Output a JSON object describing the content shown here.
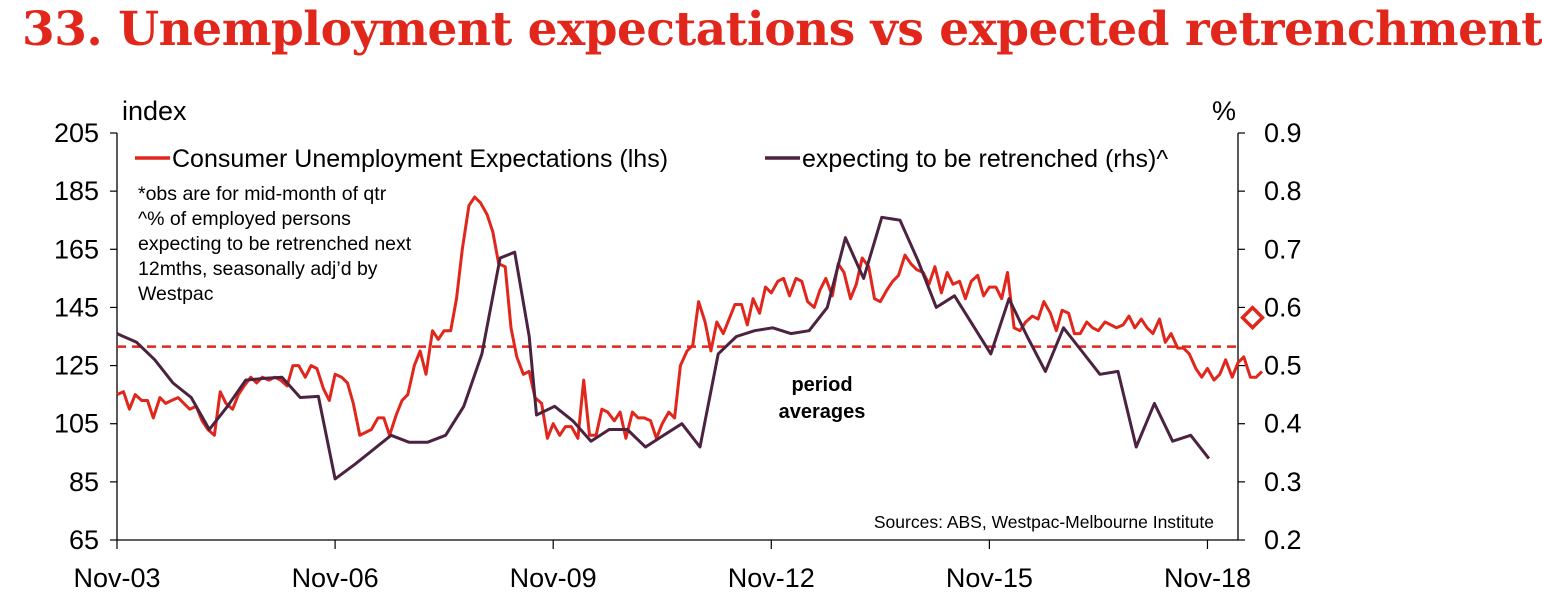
{
  "title": "33. Unemployment expectations vs expected retrenchment",
  "chart_data": {
    "type": "line",
    "title": "33. Unemployment expectations vs expected retrenchment",
    "lhs_unit": "index",
    "rhs_unit": "%",
    "lhs_range": [
      65,
      205
    ],
    "rhs_range": [
      0.2,
      0.9
    ],
    "lhs_ticks": [
      "205",
      "185",
      "165",
      "145",
      "125",
      "105",
      "85",
      "65"
    ],
    "rhs_ticks": [
      "0.9",
      "0.8",
      "0.7",
      "0.6",
      "0.5",
      "0.4",
      "0.3",
      "0.2"
    ],
    "x_range_years": [
      2003.83,
      2019.25
    ],
    "x_ticks": [
      {
        "label": "Nov-03",
        "t": 2003.83
      },
      {
        "label": "Nov-06",
        "t": 2006.83
      },
      {
        "label": "Nov-09",
        "t": 2009.83
      },
      {
        "label": "Nov-12",
        "t": 2012.83
      },
      {
        "label": "Nov-15",
        "t": 2015.83
      },
      {
        "label": "Nov-18",
        "t": 2018.83
      }
    ],
    "series": [
      {
        "name": "Consumer Unemployment Expectations (lhs)",
        "axis": "lhs",
        "color": "#e1261c",
        "points": [
          [
            2003.83,
            115
          ],
          [
            2003.92,
            116
          ],
          [
            2004.0,
            110
          ],
          [
            2004.08,
            115
          ],
          [
            2004.17,
            113
          ],
          [
            2004.25,
            113
          ],
          [
            2004.33,
            107
          ],
          [
            2004.42,
            114
          ],
          [
            2004.5,
            112
          ],
          [
            2004.58,
            113
          ],
          [
            2004.67,
            114
          ],
          [
            2004.75,
            112
          ],
          [
            2004.83,
            110
          ],
          [
            2004.92,
            111
          ],
          [
            2005.0,
            106
          ],
          [
            2005.08,
            103
          ],
          [
            2005.17,
            101
          ],
          [
            2005.25,
            116
          ],
          [
            2005.33,
            112
          ],
          [
            2005.42,
            110
          ],
          [
            2005.5,
            115
          ],
          [
            2005.58,
            118
          ],
          [
            2005.67,
            121
          ],
          [
            2005.75,
            119
          ],
          [
            2005.83,
            121
          ],
          [
            2005.92,
            120
          ],
          [
            2006.0,
            121
          ],
          [
            2006.08,
            120
          ],
          [
            2006.17,
            118
          ],
          [
            2006.25,
            125
          ],
          [
            2006.33,
            125
          ],
          [
            2006.42,
            121
          ],
          [
            2006.5,
            125
          ],
          [
            2006.58,
            124
          ],
          [
            2006.67,
            117
          ],
          [
            2006.75,
            113
          ],
          [
            2006.83,
            122
          ],
          [
            2006.92,
            121
          ],
          [
            2007.0,
            119
          ],
          [
            2007.08,
            112
          ],
          [
            2007.17,
            101
          ],
          [
            2007.25,
            102
          ],
          [
            2007.33,
            103
          ],
          [
            2007.42,
            107
          ],
          [
            2007.5,
            107
          ],
          [
            2007.58,
            101
          ],
          [
            2007.67,
            108
          ],
          [
            2007.75,
            113
          ],
          [
            2007.83,
            115
          ],
          [
            2007.92,
            125
          ],
          [
            2008.0,
            130
          ],
          [
            2008.08,
            122
          ],
          [
            2008.17,
            137
          ],
          [
            2008.25,
            134
          ],
          [
            2008.33,
            137
          ],
          [
            2008.42,
            137
          ],
          [
            2008.5,
            148
          ],
          [
            2008.58,
            165
          ],
          [
            2008.67,
            180
          ],
          [
            2008.75,
            183
          ],
          [
            2008.83,
            181
          ],
          [
            2008.92,
            177
          ],
          [
            2009.0,
            171
          ],
          [
            2009.08,
            160
          ],
          [
            2009.17,
            159
          ],
          [
            2009.25,
            138
          ],
          [
            2009.33,
            128
          ],
          [
            2009.42,
            122
          ],
          [
            2009.5,
            123
          ],
          [
            2009.58,
            114
          ],
          [
            2009.67,
            112
          ],
          [
            2009.75,
            100
          ],
          [
            2009.83,
            105
          ],
          [
            2009.92,
            101
          ],
          [
            2010.0,
            104
          ],
          [
            2010.08,
            104
          ],
          [
            2010.17,
            100
          ],
          [
            2010.25,
            120
          ],
          [
            2010.33,
            101
          ],
          [
            2010.42,
            101
          ],
          [
            2010.5,
            110
          ],
          [
            2010.58,
            109
          ],
          [
            2010.67,
            106
          ],
          [
            2010.75,
            109
          ],
          [
            2010.83,
            100
          ],
          [
            2010.92,
            109
          ],
          [
            2011.0,
            107
          ],
          [
            2011.08,
            107
          ],
          [
            2011.17,
            106
          ],
          [
            2011.25,
            100
          ],
          [
            2011.33,
            105
          ],
          [
            2011.42,
            109
          ],
          [
            2011.5,
            107
          ],
          [
            2011.58,
            125
          ],
          [
            2011.67,
            130
          ],
          [
            2011.75,
            132
          ],
          [
            2011.83,
            147
          ],
          [
            2011.92,
            140
          ],
          [
            2012.0,
            130
          ],
          [
            2012.08,
            140
          ],
          [
            2012.17,
            136
          ],
          [
            2012.25,
            141
          ],
          [
            2012.33,
            146
          ],
          [
            2012.42,
            146
          ],
          [
            2012.5,
            139
          ],
          [
            2012.58,
            148
          ],
          [
            2012.67,
            143
          ],
          [
            2012.75,
            152
          ],
          [
            2012.83,
            150
          ],
          [
            2012.92,
            154
          ],
          [
            2013.0,
            155
          ],
          [
            2013.08,
            149
          ],
          [
            2013.17,
            155
          ],
          [
            2013.25,
            154
          ],
          [
            2013.33,
            147
          ],
          [
            2013.42,
            145
          ],
          [
            2013.5,
            151
          ],
          [
            2013.58,
            155
          ],
          [
            2013.67,
            149
          ],
          [
            2013.75,
            160
          ],
          [
            2013.83,
            157
          ],
          [
            2013.92,
            148
          ],
          [
            2014.0,
            153
          ],
          [
            2014.08,
            162
          ],
          [
            2014.17,
            159
          ],
          [
            2014.25,
            148
          ],
          [
            2014.33,
            147
          ],
          [
            2014.42,
            151
          ],
          [
            2014.5,
            154
          ],
          [
            2014.58,
            156
          ],
          [
            2014.67,
            163
          ],
          [
            2014.75,
            160
          ],
          [
            2014.83,
            158
          ],
          [
            2014.92,
            157
          ],
          [
            2015.0,
            153
          ],
          [
            2015.08,
            159
          ],
          [
            2015.17,
            150
          ],
          [
            2015.25,
            157
          ],
          [
            2015.33,
            153
          ],
          [
            2015.42,
            154
          ],
          [
            2015.5,
            148
          ],
          [
            2015.58,
            154
          ],
          [
            2015.67,
            156
          ],
          [
            2015.75,
            149
          ],
          [
            2015.83,
            152
          ],
          [
            2015.92,
            152
          ],
          [
            2016.0,
            148
          ],
          [
            2016.08,
            157
          ],
          [
            2016.17,
            138
          ],
          [
            2016.25,
            137
          ],
          [
            2016.33,
            140
          ],
          [
            2016.42,
            142
          ],
          [
            2016.5,
            141
          ],
          [
            2016.58,
            147
          ],
          [
            2016.67,
            143
          ],
          [
            2016.75,
            137
          ],
          [
            2016.83,
            144
          ],
          [
            2016.92,
            143
          ],
          [
            2017.0,
            136
          ],
          [
            2017.08,
            136
          ],
          [
            2017.17,
            140
          ],
          [
            2017.25,
            138
          ],
          [
            2017.33,
            137
          ],
          [
            2017.42,
            140
          ],
          [
            2017.5,
            139
          ],
          [
            2017.58,
            138
          ],
          [
            2017.67,
            139
          ],
          [
            2017.75,
            142
          ],
          [
            2017.83,
            138
          ],
          [
            2017.92,
            141
          ],
          [
            2018.0,
            138
          ],
          [
            2018.08,
            136
          ],
          [
            2018.17,
            141
          ],
          [
            2018.25,
            133
          ],
          [
            2018.33,
            136
          ],
          [
            2018.42,
            131
          ],
          [
            2018.5,
            131
          ],
          [
            2018.58,
            129
          ],
          [
            2018.67,
            124
          ],
          [
            2018.75,
            121
          ],
          [
            2018.83,
            124
          ],
          [
            2018.92,
            120
          ],
          [
            2019.0,
            122
          ],
          [
            2019.08,
            127
          ],
          [
            2019.17,
            121
          ],
          [
            2019.25,
            126
          ],
          [
            2019.33,
            128
          ],
          [
            2019.42,
            121
          ],
          [
            2019.5,
            121
          ],
          [
            2019.58,
            123
          ]
        ]
      },
      {
        "name": "expecting to be retrenched (rhs)^",
        "axis": "rhs",
        "color": "#4b2240",
        "points": [
          [
            2003.83,
            0.555
          ],
          [
            2004.1,
            0.54
          ],
          [
            2004.35,
            0.51
          ],
          [
            2004.6,
            0.47
          ],
          [
            2004.85,
            0.445
          ],
          [
            2005.1,
            0.39
          ],
          [
            2005.35,
            0.43
          ],
          [
            2005.6,
            0.475
          ],
          [
            2005.85,
            0.478
          ],
          [
            2006.1,
            0.48
          ],
          [
            2006.35,
            0.445
          ],
          [
            2006.6,
            0.447
          ],
          [
            2006.83,
            0.305
          ],
          [
            2007.1,
            0.33
          ],
          [
            2007.35,
            0.355
          ],
          [
            2007.6,
            0.38
          ],
          [
            2007.85,
            0.368
          ],
          [
            2008.1,
            0.368
          ],
          [
            2008.35,
            0.38
          ],
          [
            2008.6,
            0.43
          ],
          [
            2008.85,
            0.52
          ],
          [
            2009.1,
            0.685
          ],
          [
            2009.3,
            0.695
          ],
          [
            2009.5,
            0.55
          ],
          [
            2009.6,
            0.415
          ],
          [
            2009.85,
            0.43
          ],
          [
            2010.1,
            0.405
          ],
          [
            2010.35,
            0.37
          ],
          [
            2010.6,
            0.39
          ],
          [
            2010.85,
            0.39
          ],
          [
            2011.1,
            0.36
          ],
          [
            2011.35,
            0.38
          ],
          [
            2011.6,
            0.4
          ],
          [
            2011.85,
            0.36
          ],
          [
            2012.1,
            0.52
          ],
          [
            2012.35,
            0.55
          ],
          [
            2012.6,
            0.56
          ],
          [
            2012.85,
            0.565
          ],
          [
            2013.1,
            0.555
          ],
          [
            2013.35,
            0.56
          ],
          [
            2013.6,
            0.6
          ],
          [
            2013.85,
            0.72
          ],
          [
            2014.1,
            0.65
          ],
          [
            2014.35,
            0.755
          ],
          [
            2014.6,
            0.75
          ],
          [
            2014.85,
            0.68
          ],
          [
            2015.1,
            0.6
          ],
          [
            2015.35,
            0.62
          ],
          [
            2015.6,
            0.57
          ],
          [
            2015.85,
            0.52
          ],
          [
            2016.1,
            0.615
          ],
          [
            2016.35,
            0.55
          ],
          [
            2016.6,
            0.49
          ],
          [
            2016.85,
            0.565
          ],
          [
            2017.1,
            0.525
          ],
          [
            2017.35,
            0.485
          ],
          [
            2017.6,
            0.49
          ],
          [
            2017.85,
            0.36
          ],
          [
            2018.1,
            0.435
          ],
          [
            2018.35,
            0.37
          ],
          [
            2018.6,
            0.38
          ],
          [
            2018.85,
            0.34
          ]
        ]
      }
    ],
    "reference_line": {
      "value": 131.5,
      "axis": "lhs",
      "style": "dashed",
      "color": "#e1261c"
    },
    "marker": {
      "t": 2019.45,
      "value": 141.5,
      "axis": "lhs",
      "shape": "diamond",
      "color": "#e1261c"
    },
    "legend": {
      "items": [
        {
          "label": "Consumer Unemployment Expectations (lhs)",
          "color": "#e1261c"
        },
        {
          "label": "expecting to be retrenched (rhs)^",
          "color": "#4b2240"
        }
      ],
      "placement": "top"
    },
    "notes": [
      "*obs are for mid-month of qtr",
      "^% of employed persons",
      "expecting to be retrenched next",
      "12mths, seasonally adj’d by",
      "Westpac"
    ],
    "annotation": [
      "period",
      "averages"
    ],
    "source": "Sources: ABS, Westpac-Melbourne Institute"
  }
}
